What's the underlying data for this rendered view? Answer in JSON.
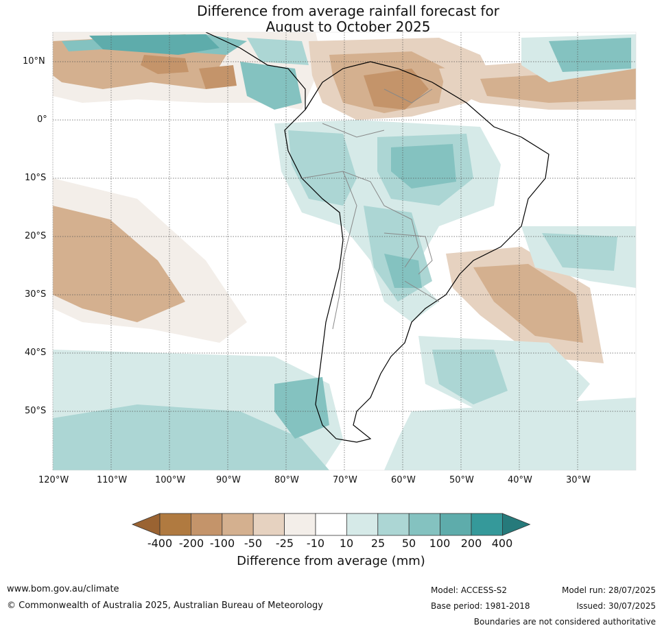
{
  "title": {
    "line1": "Difference from average rainfall forecast for",
    "line2": "August to October 2025"
  },
  "map": {
    "region": "South America",
    "lat_labels": [
      "10°N",
      "0°",
      "10°S",
      "20°S",
      "30°S",
      "40°S",
      "50°S"
    ],
    "lon_labels": [
      "120°W",
      "110°W",
      "100°W",
      "90°W",
      "80°W",
      "70°W",
      "60°W",
      "50°W",
      "40°W",
      "30°W"
    ],
    "gridlines": true
  },
  "colorbar": {
    "ticks": [
      "-400",
      "-200",
      "-100",
      "-50",
      "-25",
      "-10",
      "10",
      "25",
      "50",
      "100",
      "200",
      "400"
    ],
    "colors": [
      "#9a6332",
      "#b07a40",
      "#c4946a",
      "#d4b08f",
      "#e6d2c0",
      "#f3eee9",
      "#ffffff",
      "#d6eae8",
      "#acd6d4",
      "#84c2c0",
      "#5eacab",
      "#35999a",
      "#267a7b"
    ],
    "label": "Difference from average (mm)"
  },
  "footer": {
    "website": "www.bom.gov.au/climate",
    "copyright": "© Commonwealth of Australia 2025, Australian Bureau of Meteorology",
    "model": "Model: ACCESS-S2",
    "base_period": "Base period: 1981-2018",
    "model_run": "Model run: 28/07/2025",
    "issued": "Issued: 30/07/2025",
    "disclaimer": "Boundaries are not considered authoritative"
  }
}
